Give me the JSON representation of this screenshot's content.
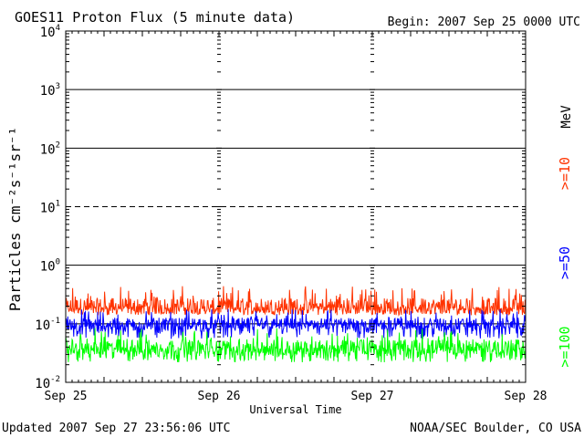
{
  "header": {
    "title": "GOES11 Proton Flux (5 minute data)",
    "begin": "Begin: 2007 Sep 25 0000 UTC"
  },
  "footer": {
    "updated": "Updated 2007 Sep 27 23:56:06 UTC",
    "credit": "NOAA/SEC Boulder, CO USA"
  },
  "chart_data": {
    "type": "line",
    "ylabel": "Particles cm⁻²s⁻¹sr⁻¹",
    "xlabel": "Universal Time",
    "y_scale": "log",
    "ylim": [
      0.01,
      10000
    ],
    "xlim": [
      0,
      3
    ],
    "y_ticks": [
      {
        "value": 0.01,
        "label": "10",
        "exp": "-2"
      },
      {
        "value": 0.1,
        "label": "10",
        "exp": "-1"
      },
      {
        "value": 1,
        "label": "10",
        "exp": "0"
      },
      {
        "value": 10,
        "label": "10",
        "exp": "1"
      },
      {
        "value": 100,
        "label": "10",
        "exp": "2"
      },
      {
        "value": 1000,
        "label": "10",
        "exp": "3"
      },
      {
        "value": 10000,
        "label": "10",
        "exp": "4"
      }
    ],
    "x_ticks": [
      {
        "value": 0,
        "label": "Sep 25"
      },
      {
        "value": 1,
        "label": "Sep 26"
      },
      {
        "value": 2,
        "label": "Sep 27"
      },
      {
        "value": 3,
        "label": "Sep 28"
      }
    ],
    "grid": true,
    "unit_label": "MeV",
    "series": [
      {
        "name": ">=10",
        "color": "#ff3300",
        "range": [
          0.14,
          0.45
        ],
        "typical": 0.2
      },
      {
        "name": ">=50",
        "color": "#0000ff",
        "range": [
          0.055,
          0.18
        ],
        "typical": 0.1
      },
      {
        "name": ">=100",
        "color": "#00ff00",
        "range": [
          0.022,
          0.085
        ],
        "typical": 0.04
      }
    ]
  }
}
